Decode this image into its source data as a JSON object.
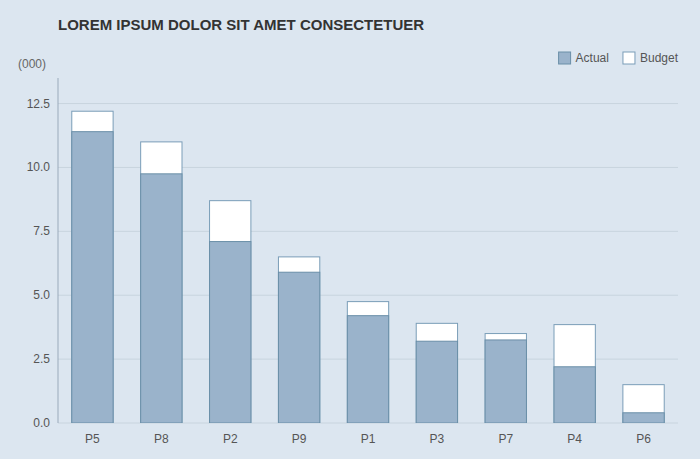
{
  "chart_data": {
    "type": "bar",
    "title": "LOREM IPSUM DOLOR SIT AMET CONSECTETUER",
    "ylabel": "(000)",
    "categories": [
      "P5",
      "P8",
      "P2",
      "P9",
      "P1",
      "P3",
      "P7",
      "P4",
      "P6"
    ],
    "series": [
      {
        "name": "Actual",
        "color": "#9ab3cb",
        "values": [
          11.4,
          9.75,
          7.1,
          5.9,
          4.2,
          3.2,
          3.25,
          2.2,
          0.4
        ]
      },
      {
        "name": "Budget",
        "color": "#ffffff",
        "values": [
          12.2,
          11.0,
          8.7,
          6.5,
          4.75,
          3.9,
          3.5,
          3.85,
          1.5
        ]
      }
    ],
    "ylim": [
      0,
      13.5
    ],
    "yticks": [
      {
        "value": 0.0,
        "label": "0.0"
      },
      2.5,
      {
        "value": 5.0,
        "label": "5.0"
      },
      7.5,
      {
        "value": 10.0,
        "label": "10.0"
      },
      12.5
    ],
    "grid": true,
    "legend": "upper right"
  }
}
